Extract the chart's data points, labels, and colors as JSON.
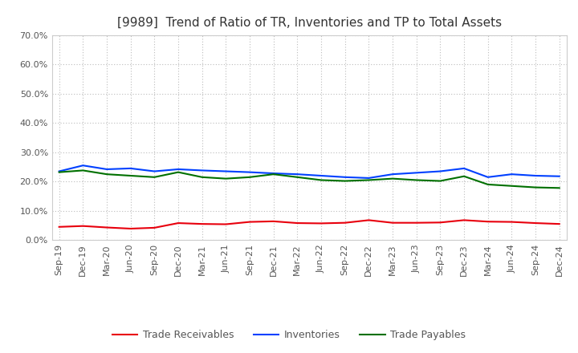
{
  "title": "[9989]  Trend of Ratio of TR, Inventories and TP to Total Assets",
  "x_labels": [
    "Sep-19",
    "Dec-19",
    "Mar-20",
    "Jun-20",
    "Sep-20",
    "Dec-20",
    "Mar-21",
    "Jun-21",
    "Sep-21",
    "Dec-21",
    "Mar-22",
    "Jun-22",
    "Sep-22",
    "Dec-22",
    "Mar-23",
    "Jun-23",
    "Sep-23",
    "Dec-23",
    "Mar-24",
    "Jun-24",
    "Sep-24",
    "Dec-24"
  ],
  "trade_receivables": [
    4.5,
    4.8,
    4.3,
    3.9,
    4.2,
    5.8,
    5.5,
    5.4,
    6.2,
    6.4,
    5.8,
    5.7,
    5.9,
    6.8,
    5.9,
    5.9,
    6.0,
    6.8,
    6.3,
    6.2,
    5.8,
    5.5
  ],
  "inventories": [
    23.5,
    25.5,
    24.2,
    24.5,
    23.5,
    24.2,
    23.8,
    23.5,
    23.2,
    22.8,
    22.5,
    22.0,
    21.5,
    21.2,
    22.5,
    23.0,
    23.5,
    24.5,
    21.5,
    22.5,
    22.0,
    21.8
  ],
  "trade_payables": [
    23.2,
    23.8,
    22.5,
    22.0,
    21.5,
    23.2,
    21.5,
    21.0,
    21.5,
    22.5,
    21.5,
    20.5,
    20.2,
    20.5,
    21.0,
    20.5,
    20.2,
    21.8,
    19.0,
    18.5,
    18.0,
    17.8
  ],
  "ylim": [
    0,
    70
  ],
  "yticks": [
    0,
    10,
    20,
    30,
    40,
    50,
    60,
    70
  ],
  "line_colors": {
    "trade_receivables": "#e8000d",
    "inventories": "#0040ff",
    "trade_payables": "#007000"
  },
  "line_width": 1.5,
  "legend_labels": [
    "Trade Receivables",
    "Inventories",
    "Trade Payables"
  ],
  "background_color": "#ffffff",
  "plot_bg_color": "#ffffff",
  "grid_color": "#bbbbbb",
  "title_color": "#333333",
  "tick_color": "#555555"
}
